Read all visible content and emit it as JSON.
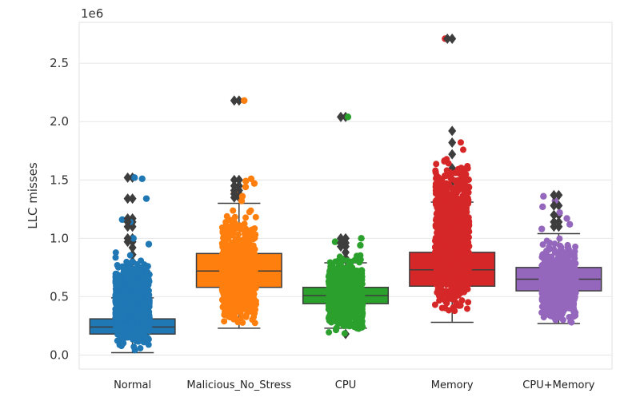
{
  "chart_data": {
    "type": "box",
    "ylabel": "LLC misses",
    "xlabel": "",
    "y_offset_text": "1e6",
    "ylim": [
      -0.12,
      2.85
    ],
    "yticks": [
      0.0,
      0.5,
      1.0,
      1.5,
      2.0,
      2.5
    ],
    "ytick_labels": [
      "0.0",
      "0.5",
      "1.0",
      "1.5",
      "2.0",
      "2.5"
    ],
    "grid": true,
    "categories": [
      "Normal",
      "Malicious_No_Stress",
      "CPU",
      "Memory",
      "CPU+Memory"
    ],
    "series": [
      {
        "color": "#1f77b4",
        "q1": 0.18,
        "median": 0.24,
        "q3": 0.31,
        "whisker_low": 0.02,
        "whisker_high": 0.49,
        "outliers": [
          0.52,
          0.55,
          0.58,
          0.62,
          0.67,
          0.72,
          0.8,
          0.86,
          0.92,
          0.97,
          1.0,
          1.1,
          1.14,
          1.17,
          1.34,
          1.52
        ],
        "points_range": [
          0.01,
          0.92
        ],
        "extra_points": [
          0.95,
          1.0,
          1.14,
          1.16,
          1.34,
          1.51,
          1.52
        ]
      },
      {
        "color": "#ff7f0e",
        "q1": 0.58,
        "median": 0.72,
        "q3": 0.87,
        "whisker_low": 0.23,
        "whisker_high": 1.3,
        "outliers": [
          1.35,
          1.38,
          1.41,
          1.45,
          1.5,
          2.18
        ],
        "points_range": [
          0.22,
          1.3
        ],
        "extra_points": [
          1.32,
          1.36,
          1.4,
          1.44,
          1.47,
          1.49,
          1.51,
          2.18
        ]
      },
      {
        "color": "#2ca02c",
        "q1": 0.44,
        "median": 0.51,
        "q3": 0.58,
        "whisker_low": 0.23,
        "whisker_high": 0.79,
        "outliers": [
          0.18,
          0.83,
          0.88,
          0.93,
          0.96,
          1.0,
          2.04
        ],
        "points_range": [
          0.17,
          0.9
        ],
        "extra_points": [
          0.94,
          0.97,
          1.0,
          2.04
        ]
      },
      {
        "color": "#d62728",
        "q1": 0.59,
        "median": 0.73,
        "q3": 0.88,
        "whisker_low": 0.28,
        "whisker_high": 1.31,
        "outliers": [
          1.38,
          1.48,
          1.6,
          1.72,
          1.82,
          1.92,
          2.71
        ],
        "points_range": [
          0.27,
          1.92
        ],
        "extra_points": [
          2.71
        ]
      },
      {
        "color": "#9467bd",
        "q1": 0.55,
        "median": 0.65,
        "q3": 0.75,
        "whisker_low": 0.27,
        "whisker_high": 1.04,
        "outliers": [
          1.1,
          1.14,
          1.2,
          1.28,
          1.37
        ],
        "points_range": [
          0.26,
          1.05
        ],
        "extra_points": [
          1.08,
          1.12,
          1.17,
          1.22,
          1.27,
          1.32,
          1.36
        ]
      }
    ]
  }
}
